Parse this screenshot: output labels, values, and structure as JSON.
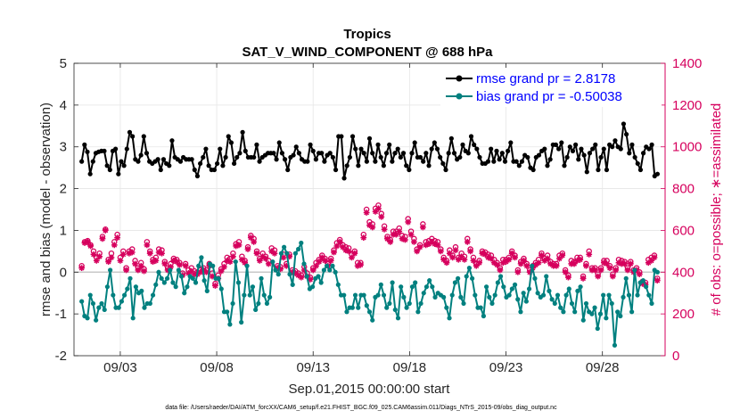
{
  "chart_data": {
    "type": "line",
    "title": "Tropics",
    "subtitle": "SAT_V_WIND_COMPONENT @ 688 hPa",
    "xlabel": "Sep.01,2015 00:00:00 start",
    "ylabel_left": "rmse and bias (model - observation)",
    "ylabel_right": "# of obs: o=possible; ∗=assimilated",
    "footnote": "data file: /Users/raeder/DAI/ATM_forcXX/CAM6_setup/f.e21.FHIST_BGC.f09_025.CAM6assim.011/Diags_NTrS_2015-09/obs_diag_output.nc",
    "x_ticks": [
      "09/03",
      "09/08",
      "09/13",
      "09/18",
      "09/23",
      "09/28"
    ],
    "x_tick_days": [
      3,
      8,
      13,
      18,
      23,
      28
    ],
    "xlim_days": [
      0.6,
      31.25
    ],
    "ylim_left": [
      -2,
      5
    ],
    "yticks_left": [
      "-2",
      "-1",
      "0",
      "1",
      "2",
      "3",
      "4",
      "5"
    ],
    "ylim_right": [
      0,
      1400
    ],
    "yticks_right": [
      "0",
      "200",
      "400",
      "600",
      "800",
      "1000",
      "1200",
      "1400"
    ],
    "colors": {
      "rmse": "#000000",
      "bias": "#00807f",
      "obs": "#d6005d",
      "legend_text": "#0000ff",
      "zero_line": "#c8c8c8",
      "grid": "#e6e6e6"
    },
    "series": [
      {
        "name": "rmse grand pr = 2.8178",
        "axis": "left",
        "values": [
          2.65,
          3.05,
          2.88,
          2.35,
          2.65,
          2.85,
          2.88,
          2.9,
          2.9,
          2.55,
          2.45,
          2.9,
          2.95,
          2.35,
          2.65,
          2.55,
          2.95,
          3.35,
          3.25,
          2.7,
          2.65,
          2.8,
          3.25,
          2.85,
          2.65,
          2.6,
          2.65,
          2.7,
          2.45,
          2.7,
          2.6,
          2.55,
          3.15,
          2.75,
          2.7,
          2.65,
          2.75,
          2.7,
          2.7,
          2.7,
          2.45,
          2.3,
          2.6,
          2.75,
          2.95,
          2.55,
          2.45,
          2.45,
          2.6,
          2.95,
          2.55,
          2.75,
          3.25,
          3.1,
          2.6,
          2.75,
          2.85,
          3.35,
          2.9,
          2.75,
          2.75,
          2.75,
          3.05,
          2.65,
          2.75,
          2.8,
          2.85,
          2.85,
          2.85,
          2.7,
          3.1,
          2.85,
          2.7,
          2.45,
          2.75,
          2.8,
          3.0,
          2.85,
          2.7,
          2.65,
          2.65,
          3.05,
          2.9,
          2.7,
          2.85,
          2.85,
          2.65,
          2.8,
          2.85,
          2.75,
          2.45,
          3.25,
          3.25,
          2.25,
          2.55,
          2.75,
          3.25,
          2.95,
          2.55,
          2.95,
          2.85,
          2.65,
          3.2,
          2.85,
          2.65,
          3.05,
          2.75,
          2.55,
          2.85,
          3.05,
          2.65,
          2.85,
          2.95,
          2.75,
          2.85,
          2.55,
          2.45,
          2.85,
          3.1,
          2.75,
          2.75,
          2.65,
          2.85,
          2.55,
          2.95,
          3.1,
          2.95,
          2.75,
          2.6,
          2.45,
          2.85,
          3.2,
          2.85,
          2.7,
          2.75,
          3.05,
          2.9,
          2.85,
          3.25,
          3.05,
          2.95,
          2.75,
          2.6,
          2.6,
          2.65,
          2.95,
          2.65,
          2.9,
          2.7,
          2.85,
          2.65,
          2.9,
          3.1,
          2.65,
          2.65,
          2.55,
          2.65,
          2.8,
          2.75,
          2.5,
          2.45,
          2.75,
          2.8,
          2.9,
          2.95,
          2.55,
          2.7,
          3.05,
          3.05,
          2.95,
          3.1,
          2.55,
          2.75,
          3.0,
          2.9,
          3.05,
          2.7,
          2.95,
          2.8,
          2.4,
          2.85,
          2.95,
          3.05,
          2.45,
          2.75,
          2.95,
          2.45,
          3.05,
          3.0,
          3.15,
          3.0,
          2.95,
          3.55,
          3.3,
          2.85,
          3.05,
          2.75,
          2.6,
          2.45,
          2.85,
          3.0,
          2.95,
          3.05,
          2.3,
          2.35
        ]
      },
      {
        "name": "bias grand pr = -0.50038",
        "axis": "left",
        "values": [
          -0.7,
          -1.05,
          -1.1,
          -0.55,
          -0.75,
          -1.15,
          -0.85,
          -0.75,
          -0.9,
          -0.35,
          0.05,
          -0.55,
          -0.85,
          -0.85,
          -0.7,
          -0.55,
          -0.4,
          -0.15,
          -1.1,
          -0.35,
          -0.5,
          -0.45,
          -0.85,
          -0.75,
          -0.75,
          -0.55,
          -0.3,
          0.0,
          -0.15,
          -0.25,
          -0.15,
          0.05,
          -0.25,
          -0.35,
          0.05,
          -0.1,
          -0.5,
          -0.35,
          -0.1,
          -0.15,
          -0.25,
          0.15,
          0.35,
          -0.2,
          -0.45,
          0.2,
          0.15,
          -0.15,
          -0.15,
          -0.4,
          -0.95,
          -0.95,
          -1.25,
          -0.75,
          0.25,
          -0.25,
          -1.2,
          -0.55,
          0.15,
          -0.55,
          -0.35,
          -0.9,
          -0.75,
          -0.15,
          -0.55,
          -0.75,
          -0.6,
          0.25,
          0.05,
          -0.05,
          0.45,
          0.6,
          0.45,
          -0.05,
          -0.3,
          0.45,
          0.55,
          0.7,
          0.2,
          -0.1,
          -0.4,
          -0.35,
          -0.15,
          -0.1,
          -0.25,
          0.05,
          0.15,
          0.05,
          0.15,
          0.0,
          -0.3,
          -0.55,
          -0.55,
          -0.95,
          -0.85,
          -0.85,
          -0.55,
          -0.85,
          -0.55,
          -0.55,
          -0.8,
          -0.95,
          -1.15,
          -0.6,
          -0.55,
          -0.3,
          -0.55,
          -0.85,
          -0.75,
          -0.25,
          -0.9,
          -1.1,
          -0.35,
          -0.6,
          -0.85,
          -0.75,
          -0.35,
          -0.25,
          -0.95,
          -0.75,
          -0.5,
          -0.35,
          -0.2,
          -0.35,
          -0.6,
          -0.5,
          -0.55,
          -0.6,
          -0.85,
          -1.1,
          -0.55,
          -0.25,
          -0.15,
          -0.6,
          -0.75,
          -0.1,
          0.1,
          -0.15,
          -0.55,
          -0.85,
          -0.85,
          -1.05,
          -0.35,
          -0.6,
          -0.75,
          -0.55,
          -0.25,
          -0.1,
          -0.35,
          -0.6,
          -0.55,
          -0.4,
          -0.3,
          -0.65,
          -0.95,
          -0.5,
          -0.7,
          -0.4,
          0.15,
          -0.15,
          -0.5,
          -0.6,
          -0.55,
          -0.1,
          -0.45,
          -0.65,
          -0.75,
          -0.55,
          -0.85,
          -0.95,
          -0.55,
          -0.4,
          -0.75,
          -0.95,
          -0.45,
          -0.35,
          -1.15,
          -0.75,
          -0.95,
          -1.0,
          -0.85,
          -1.35,
          -1.0,
          -0.55,
          -1.1,
          -0.55,
          -0.75,
          -1.75,
          -0.95,
          -1.05,
          -0.6,
          -0.15,
          -0.55,
          -0.95,
          0.05,
          -0.55,
          -0.25,
          -0.2,
          -0.35,
          -0.55,
          -0.75,
          0.05,
          0.0
        ]
      },
      {
        "name": "# of obs: possible",
        "axis": "right",
        "marker": "circle",
        "values": [
          430,
          545,
          550,
          530,
          500,
          470,
          490,
          570,
          605,
          460,
          490,
          545,
          580,
          470,
          500,
          420,
          500,
          510,
          455,
          420,
          445,
          415,
          545,
          500,
          460,
          470,
          510,
          505,
          450,
          420,
          440,
          465,
          460,
          445,
          395,
          440,
          410,
          420,
          405,
          400,
          410,
          420,
          410,
          440,
          395,
          345,
          385,
          415,
          440,
          470,
          465,
          490,
          535,
          545,
          475,
          455,
          520,
          575,
          560,
          500,
          465,
          490,
          475,
          455,
          515,
          505,
          430,
          425,
          485,
          440,
          485,
          410,
          405,
          395,
          385,
          425,
          395,
          375,
          420,
          445,
          460,
          480,
          465,
          440,
          465,
          505,
          540,
          555,
          530,
          520,
          515,
          485,
          500,
          445,
          445,
          580,
          700,
          640,
          630,
          705,
          720,
          680,
          620,
          570,
          555,
          595,
          595,
          610,
          575,
          570,
          655,
          595,
          560,
          510,
          530,
          630,
          545,
          550,
          560,
          550,
          545,
          510,
          470,
          455,
          505,
          480,
          520,
          470,
          490,
          475,
          560,
          510,
          470,
          440,
          455,
          500,
          495,
          485,
          480,
          460,
          445,
          420,
          460,
          460,
          470,
          500,
          480,
          410,
          450,
          465,
          440,
          410,
          430,
          445,
          460,
          490,
          465,
          480,
          450,
          440,
          440,
          480,
          490,
          410,
          385,
          455,
          450,
          470,
          470,
          380,
          440,
          500,
          420,
          420,
          390,
          420,
          455,
          455,
          430,
          390,
          420,
          460,
          455,
          450,
          420,
          450,
          410,
          420,
          400,
          355,
          350,
          460,
          470,
          480,
          370
        ]
      },
      {
        "name": "# of obs: assimilated",
        "axis": "right",
        "marker": "asterisk",
        "values": [
          420,
          540,
          545,
          525,
          485,
          455,
          475,
          560,
          600,
          450,
          470,
          530,
          565,
          455,
          485,
          410,
          490,
          495,
          440,
          410,
          430,
          405,
          530,
          490,
          450,
          455,
          495,
          490,
          440,
          410,
          425,
          455,
          450,
          435,
          385,
          430,
          395,
          405,
          390,
          390,
          400,
          410,
          400,
          430,
          380,
          335,
          370,
          405,
          425,
          455,
          450,
          475,
          525,
          530,
          460,
          445,
          510,
          565,
          545,
          490,
          455,
          475,
          465,
          440,
          500,
          490,
          420,
          415,
          470,
          430,
          475,
          400,
          395,
          385,
          375,
          410,
          380,
          365,
          410,
          430,
          450,
          470,
          455,
          430,
          455,
          495,
          525,
          545,
          520,
          505,
          500,
          470,
          490,
          430,
          435,
          565,
          685,
          625,
          615,
          690,
          705,
          665,
          605,
          560,
          545,
          580,
          580,
          595,
          560,
          555,
          640,
          580,
          545,
          500,
          520,
          615,
          530,
          535,
          545,
          535,
          530,
          500,
          460,
          445,
          490,
          470,
          505,
          460,
          475,
          460,
          545,
          500,
          455,
          430,
          445,
          490,
          485,
          470,
          465,
          445,
          435,
          410,
          445,
          450,
          460,
          490,
          470,
          400,
          440,
          455,
          430,
          400,
          420,
          435,
          445,
          480,
          455,
          465,
          440,
          430,
          430,
          465,
          480,
          400,
          375,
          440,
          440,
          455,
          460,
          370,
          430,
          485,
          410,
          410,
          380,
          410,
          445,
          440,
          420,
          380,
          410,
          445,
          440,
          440,
          410,
          440,
          400,
          410,
          390,
          345,
          340,
          445,
          455,
          470,
          360
        ]
      }
    ]
  }
}
